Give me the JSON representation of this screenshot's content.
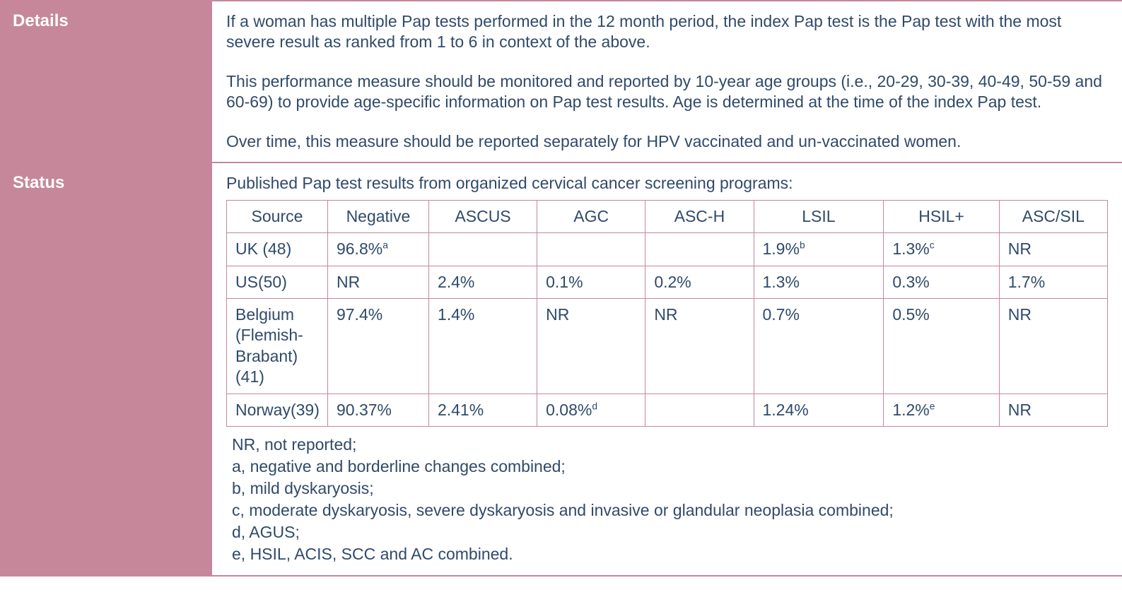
{
  "colors": {
    "accent": "#c6879b",
    "text": "#2f4a6a",
    "label_text": "#ffffff",
    "background": "#ffffff"
  },
  "typography": {
    "font_family": "Arial, Helvetica, sans-serif",
    "label_fontsize_pt": 18,
    "body_fontsize_pt": 17,
    "table_fontsize_pt": 17
  },
  "rows": {
    "details": {
      "label": "Details",
      "paragraphs": [
        "If a woman has multiple Pap tests performed in the 12 month period, the index Pap test is the Pap test with the most severe result as ranked from 1 to 6 in context of the above.",
        "This performance measure should be monitored and reported by 10-year age groups (i.e., 20-29, 30-39, 40-49, 50-59 and 60-69) to provide age-specific information on Pap test results. Age is determined at the time of the index Pap test.",
        "Over time, this measure should be reported separately for HPV vaccinated and un-vaccinated women."
      ]
    },
    "status": {
      "label": "Status",
      "intro": "Published Pap test results from organized cervical cancer screening programs:",
      "table": {
        "type": "table",
        "border_color": "#c6879b",
        "columns": [
          "Source",
          "Negative",
          "ASCUS",
          "AGC",
          "ASC-H",
          "LSIL",
          "HSIL+",
          "ASC/SIL"
        ],
        "column_align": [
          "left",
          "left",
          "left",
          "left",
          "left",
          "left",
          "left",
          "left"
        ],
        "header_align": "center",
        "data": [
          {
            "source": "UK (48)",
            "negative": {
              "v": "96.8%",
              "sup": "a"
            },
            "ascus": {
              "v": ""
            },
            "agc": {
              "v": ""
            },
            "asch": {
              "v": ""
            },
            "lsil": {
              "v": "1.9%",
              "sup": "b"
            },
            "hsil": {
              "v": "1.3%",
              "sup": "c"
            },
            "ascsil": {
              "v": "NR"
            }
          },
          {
            "source": "US(50)",
            "negative": {
              "v": "NR"
            },
            "ascus": {
              "v": "2.4%"
            },
            "agc": {
              "v": "0.1%"
            },
            "asch": {
              "v": "0.2%"
            },
            "lsil": {
              "v": "1.3%"
            },
            "hsil": {
              "v": "0.3%"
            },
            "ascsil": {
              "v": "1.7%"
            }
          },
          {
            "source": "Belgium (Flemish-Brabant) (41)",
            "negative": {
              "v": "97.4%"
            },
            "ascus": {
              "v": "1.4%"
            },
            "agc": {
              "v": "NR"
            },
            "asch": {
              "v": "NR"
            },
            "lsil": {
              "v": "0.7%"
            },
            "hsil": {
              "v": "0.5%"
            },
            "ascsil": {
              "v": "NR"
            }
          },
          {
            "source": "Norway(39)",
            "negative": {
              "v": "90.37%"
            },
            "ascus": {
              "v": "2.41%"
            },
            "agc": {
              "v": "0.08%",
              "sup": "d"
            },
            "asch": {
              "v": ""
            },
            "lsil": {
              "v": "1.24%"
            },
            "hsil": {
              "v": "1.2%",
              "sup": "e"
            },
            "ascsil": {
              "v": "NR"
            }
          }
        ]
      },
      "footnotes": [
        "NR, not reported;",
        "a, negative and borderline changes combined;",
        "b, mild dyskaryosis;",
        "c, moderate dyskaryosis, severe dyskaryosis and invasive or glandular neoplasia combined;",
        "d, AGUS;",
        "e, HSIL, ACIS, SCC and AC combined."
      ]
    }
  }
}
